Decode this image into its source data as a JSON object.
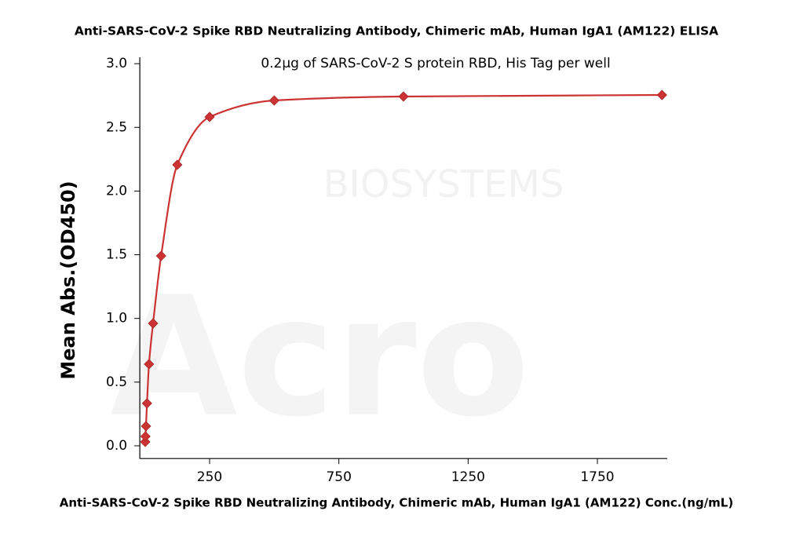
{
  "chart_data": {
    "type": "scatter",
    "title": "Anti-SARS-CoV-2 Spike RBD Neutralizing Antibody, Chimeric mAb, Human IgA1 (AM122) ELISA",
    "subtitle": "0.2μg of SARS-CoV-2 S protein RBD, His Tag per well",
    "x_label": "Anti-SARS-CoV-2 Spike RBD Neutralizing Antibody, Chimeric mAb, Human IgA1 (AM122)  Conc.(ng/mL)",
    "y_label": "Mean Abs.(OD450)",
    "watermark": [
      "Acro",
      "BIOSYSTEMS"
    ],
    "x": [
      0.98,
      1.95,
      3.9,
      7.8,
      15.6,
      31.25,
      62.5,
      125,
      250,
      500,
      1000,
      2000
    ],
    "series": [
      {
        "color": "#cc3333",
        "line": "smooth",
        "values": [
          0.031,
          0.074,
          0.154,
          0.333,
          0.641,
          0.961,
          1.491,
          2.206,
          2.582,
          2.711,
          2.742,
          2.754
        ]
      }
    ],
    "xlim": [
      -20,
      2020
    ],
    "xticks": [
      250,
      750,
      1250,
      1750
    ],
    "ylim": [
      -0.1,
      3.05
    ],
    "yticks": [
      {
        "value": 0,
        "label": "0.0"
      },
      0.5,
      {
        "value": 1,
        "label": "1.0"
      },
      1.5,
      {
        "value": 2,
        "label": "2.0"
      },
      2.5,
      {
        "value": 3,
        "label": "3.0"
      }
    ]
  }
}
